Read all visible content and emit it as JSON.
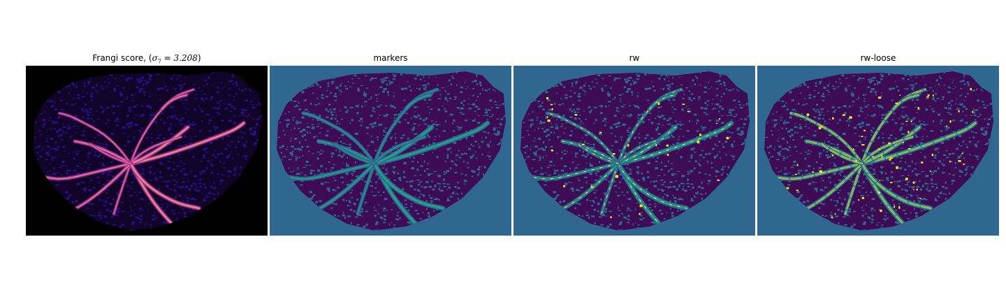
{
  "figure": {
    "panels": [
      {
        "id": "frangi",
        "title_prefix": "Frangi score, (",
        "title_math_symbol": "σ",
        "title_math_subscript": "7",
        "title_math_value": " = 3.208",
        "title_suffix": ")",
        "colormap": "magma",
        "colors": {
          "background": "#000000",
          "texture": "#2a0f8a",
          "vessel": "#b0309a",
          "vessel_bright": "#f8b080"
        }
      },
      {
        "id": "markers",
        "title": "markers",
        "colormap": "viridis",
        "colors": {
          "background": "#2f6790",
          "texture": "#3d0c55",
          "vessel": "#22a187"
        }
      },
      {
        "id": "rw",
        "title": "rw",
        "colormap": "viridis",
        "colors": {
          "background": "#2f6790",
          "texture": "#3d0c55",
          "vessel": "#22a187",
          "highlight": "#f4e720"
        }
      },
      {
        "id": "rw-loose",
        "title": "rw-loose",
        "colormap": "viridis",
        "colors": {
          "background": "#2f6790",
          "texture": "#3d0c55",
          "vessel": "#22a187",
          "highlight": "#f4e720"
        }
      }
    ]
  }
}
